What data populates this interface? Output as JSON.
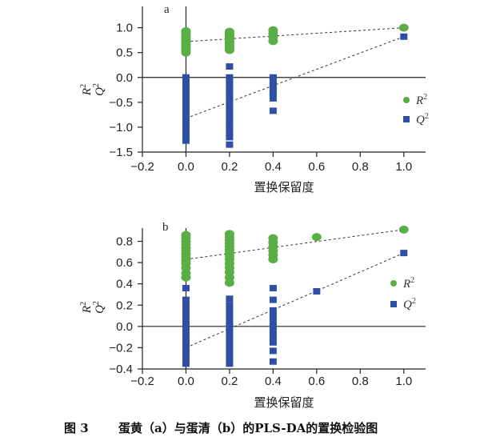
{
  "caption": {
    "number": "图 3",
    "text": "蛋黄（a）与蛋清（b）的PLS-DA的置换检验图"
  },
  "colors": {
    "r2": "#5aae46",
    "q2": "#2e4fa3",
    "axis": "#222222",
    "trend": "#333333"
  },
  "chart_data": [
    {
      "type": "scatter",
      "panel_label": "a",
      "xlabel": "置换保留度",
      "ylabel_r2": "R",
      "ylabel_q2": "Q",
      "ylabel_sup": "2",
      "xlim": [
        -0.2,
        1.1
      ],
      "ylim": [
        -1.5,
        1.2
      ],
      "xticks": [
        "−0.2",
        "0.0",
        "0.2",
        "0.4",
        "0.6",
        "0.8",
        "1.0"
      ],
      "xtick_values": [
        -0.2,
        0.0,
        0.2,
        0.4,
        0.6,
        0.8,
        1.0
      ],
      "yticks": [
        "1.0",
        "0.5",
        "0.0",
        "−0.5",
        "−1.0",
        "−1.5"
      ],
      "ytick_values": [
        1.0,
        0.5,
        0.0,
        -0.5,
        -1.0,
        -1.5
      ],
      "legend": {
        "placement": "right",
        "r2": "R",
        "q2": "Q",
        "sup": "2"
      },
      "series": [
        {
          "name": "R²",
          "marker": "circle",
          "points": [
            [
              0,
              0.93
            ],
            [
              0,
              0.88
            ],
            [
              0,
              0.84
            ],
            [
              0,
              0.8
            ],
            [
              0,
              0.76
            ],
            [
              0,
              0.72
            ],
            [
              0,
              0.68
            ],
            [
              0,
              0.64
            ],
            [
              0,
              0.6
            ],
            [
              0,
              0.56
            ],
            [
              0,
              0.5
            ],
            [
              0.2,
              0.92
            ],
            [
              0.2,
              0.88
            ],
            [
              0.2,
              0.84
            ],
            [
              0.2,
              0.8
            ],
            [
              0.2,
              0.76
            ],
            [
              0.2,
              0.72
            ],
            [
              0.2,
              0.68
            ],
            [
              0.2,
              0.64
            ],
            [
              0.2,
              0.6
            ],
            [
              0.2,
              0.55
            ],
            [
              0.4,
              0.95
            ],
            [
              0.4,
              0.88
            ],
            [
              0.4,
              0.81
            ],
            [
              0.4,
              0.73
            ],
            [
              1.0,
              1.0
            ]
          ],
          "trend": [
            [
              0,
              0.72
            ],
            [
              1.0,
              1.0
            ]
          ]
        },
        {
          "name": "Q²",
          "marker": "square",
          "points": [
            [
              0,
              0.0
            ],
            [
              0,
              -0.08
            ],
            [
              0,
              -0.16
            ],
            [
              0,
              -0.24
            ],
            [
              0,
              -0.32
            ],
            [
              0,
              -0.4
            ],
            [
              0,
              -0.48
            ],
            [
              0,
              -0.56
            ],
            [
              0,
              -0.64
            ],
            [
              0,
              -0.72
            ],
            [
              0,
              -0.8
            ],
            [
              0,
              -0.88
            ],
            [
              0,
              -0.96
            ],
            [
              0,
              -1.04
            ],
            [
              0,
              -1.12
            ],
            [
              0,
              -1.2
            ],
            [
              0,
              -1.27
            ],
            [
              0.2,
              0.22
            ],
            [
              0.2,
              0.0
            ],
            [
              0.2,
              -0.08
            ],
            [
              0.2,
              -0.16
            ],
            [
              0.2,
              -0.24
            ],
            [
              0.2,
              -0.32
            ],
            [
              0.2,
              -0.4
            ],
            [
              0.2,
              -0.48
            ],
            [
              0.2,
              -0.56
            ],
            [
              0.2,
              -0.64
            ],
            [
              0.2,
              -0.72
            ],
            [
              0.2,
              -0.8
            ],
            [
              0.2,
              -0.88
            ],
            [
              0.2,
              -0.96
            ],
            [
              0.2,
              -1.04
            ],
            [
              0.2,
              -1.12
            ],
            [
              0.2,
              -1.2
            ],
            [
              0.2,
              -1.35
            ],
            [
              0.4,
              0.0
            ],
            [
              0.4,
              -0.08
            ],
            [
              0.4,
              -0.16
            ],
            [
              0.4,
              -0.24
            ],
            [
              0.4,
              -0.32
            ],
            [
              0.4,
              -0.42
            ],
            [
              0.4,
              -0.67
            ],
            [
              1.0,
              0.82
            ]
          ],
          "trend": [
            [
              0,
              -0.82
            ],
            [
              1.0,
              0.82
            ]
          ]
        }
      ]
    },
    {
      "type": "scatter",
      "panel_label": "b",
      "xlabel": "置换保留度",
      "ylabel_r2": "R",
      "ylabel_q2": "Q",
      "ylabel_sup": "2",
      "xlim": [
        -0.2,
        1.1
      ],
      "ylim": [
        -0.4,
        0.97
      ],
      "xticks": [
        "−0.2",
        "0.0",
        "0.2",
        "0.4",
        "0.6",
        "0.8",
        "1.0"
      ],
      "xtick_values": [
        -0.2,
        0.0,
        0.2,
        0.4,
        0.6,
        0.8,
        1.0
      ],
      "yticks": [
        "0.8",
        "0.6",
        "0.4",
        "0.2",
        "0.0",
        "−0.2",
        "−0.4"
      ],
      "ytick_values": [
        0.8,
        0.6,
        0.4,
        0.2,
        0.0,
        -0.2,
        -0.4
      ],
      "legend": {
        "placement": "right",
        "r2": "R",
        "q2": "Q",
        "sup": "2"
      },
      "series": [
        {
          "name": "R²",
          "marker": "circle",
          "points": [
            [
              0,
              0.86
            ],
            [
              0,
              0.83
            ],
            [
              0,
              0.8
            ],
            [
              0,
              0.77
            ],
            [
              0,
              0.74
            ],
            [
              0,
              0.71
            ],
            [
              0,
              0.68
            ],
            [
              0,
              0.65
            ],
            [
              0,
              0.62
            ],
            [
              0,
              0.59
            ],
            [
              0,
              0.55
            ],
            [
              0,
              0.5
            ],
            [
              0,
              0.46
            ],
            [
              0.2,
              0.87
            ],
            [
              0.2,
              0.84
            ],
            [
              0.2,
              0.81
            ],
            [
              0.2,
              0.78
            ],
            [
              0.2,
              0.75
            ],
            [
              0.2,
              0.72
            ],
            [
              0.2,
              0.69
            ],
            [
              0.2,
              0.66
            ],
            [
              0.2,
              0.63
            ],
            [
              0.2,
              0.59
            ],
            [
              0.2,
              0.55
            ],
            [
              0.2,
              0.51
            ],
            [
              0.2,
              0.46
            ],
            [
              0.2,
              0.41
            ],
            [
              0.4,
              0.83
            ],
            [
              0.4,
              0.79
            ],
            [
              0.4,
              0.75
            ],
            [
              0.4,
              0.71
            ],
            [
              0.4,
              0.67
            ],
            [
              0.4,
              0.63
            ],
            [
              0.6,
              0.84
            ],
            [
              1.0,
              0.91
            ]
          ],
          "trend": [
            [
              0,
              0.63
            ],
            [
              1.0,
              0.91
            ]
          ]
        },
        {
          "name": "Q²",
          "marker": "square",
          "points": [
            [
              0,
              0.36
            ],
            [
              0,
              0.25
            ],
            [
              0,
              0.2
            ],
            [
              0,
              0.15
            ],
            [
              0,
              0.1
            ],
            [
              0,
              0.05
            ],
            [
              0,
              0.0
            ],
            [
              0,
              -0.05
            ],
            [
              0,
              -0.1
            ],
            [
              0,
              -0.15
            ],
            [
              0,
              -0.2
            ],
            [
              0,
              -0.25
            ],
            [
              0,
              -0.3
            ],
            [
              0,
              -0.35
            ],
            [
              0.2,
              0.47
            ],
            [
              0.2,
              0.26
            ],
            [
              0.2,
              0.2
            ],
            [
              0.2,
              0.15
            ],
            [
              0.2,
              0.1
            ],
            [
              0.2,
              0.05
            ],
            [
              0.2,
              0.0
            ],
            [
              0.2,
              -0.05
            ],
            [
              0.2,
              -0.1
            ],
            [
              0.2,
              -0.15
            ],
            [
              0.2,
              -0.2
            ],
            [
              0.2,
              -0.25
            ],
            [
              0.2,
              -0.3
            ],
            [
              0.2,
              -0.35
            ],
            [
              0.4,
              0.36
            ],
            [
              0.4,
              0.25
            ],
            [
              0.4,
              0.15
            ],
            [
              0.4,
              0.1
            ],
            [
              0.4,
              0.05
            ],
            [
              0.4,
              0.0
            ],
            [
              0.4,
              -0.05
            ],
            [
              0.4,
              -0.1
            ],
            [
              0.4,
              -0.15
            ],
            [
              0.4,
              -0.23
            ],
            [
              0.4,
              -0.33
            ],
            [
              0.6,
              0.33
            ],
            [
              1.0,
              0.69
            ]
          ],
          "trend": [
            [
              0,
              -0.2
            ],
            [
              1.0,
              0.69
            ]
          ]
        }
      ]
    }
  ]
}
